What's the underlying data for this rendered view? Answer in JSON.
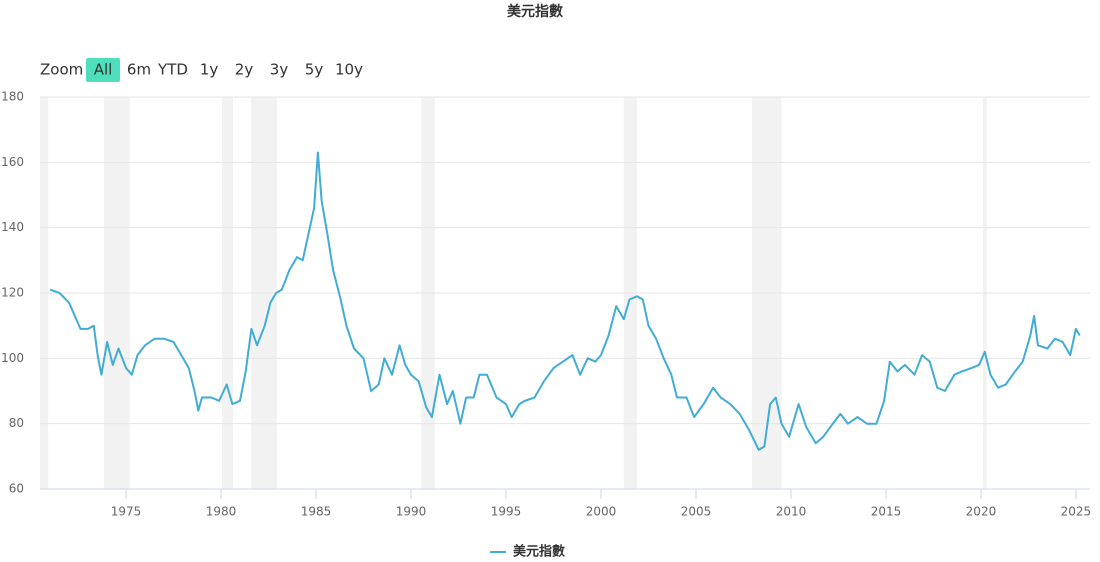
{
  "chart_data": {
    "type": "line",
    "title": "美元指數",
    "zoom_label": "Zoom",
    "range_buttons": [
      "All",
      "6m",
      "YTD",
      "1y",
      "2y",
      "3y",
      "5y",
      "10y"
    ],
    "selected_range": 0,
    "x": [
      1971.0,
      1971.5,
      1972.0,
      1972.3,
      1972.6,
      1973.0,
      1973.3,
      1973.5,
      1973.7,
      1974.0,
      1974.3,
      1974.6,
      1975.0,
      1975.3,
      1975.6,
      1976.0,
      1976.5,
      1977.0,
      1977.5,
      1978.0,
      1978.3,
      1978.6,
      1978.8,
      1979.0,
      1979.5,
      1979.9,
      1980.3,
      1980.6,
      1981.0,
      1981.3,
      1981.6,
      1981.9,
      1982.3,
      1982.6,
      1982.9,
      1983.2,
      1983.6,
      1984.0,
      1984.3,
      1984.6,
      1984.9,
      1985.1,
      1985.3,
      1985.6,
      1985.9,
      1986.3,
      1986.6,
      1987.0,
      1987.5,
      1987.9,
      1988.3,
      1988.6,
      1989.0,
      1989.4,
      1989.7,
      1990.0,
      1990.4,
      1990.8,
      1991.1,
      1991.5,
      1991.9,
      1992.2,
      1992.6,
      1992.9,
      1993.3,
      1993.6,
      1994.0,
      1994.5,
      1995.0,
      1995.3,
      1995.7,
      1996.0,
      1996.5,
      1997.0,
      1997.5,
      1998.0,
      1998.5,
      1998.9,
      1999.3,
      1999.7,
      2000.0,
      2000.4,
      2000.8,
      2001.2,
      2001.5,
      2001.9,
      2002.2,
      2002.5,
      2002.9,
      2003.3,
      2003.7,
      2004.0,
      2004.5,
      2004.9,
      2005.4,
      2005.9,
      2006.3,
      2006.8,
      2007.3,
      2007.8,
      2008.3,
      2008.6,
      2008.9,
      2009.2,
      2009.5,
      2009.9,
      2010.4,
      2010.8,
      2011.3,
      2011.7,
      2012.2,
      2012.6,
      2013.0,
      2013.5,
      2014.0,
      2014.5,
      2014.9,
      2015.2,
      2015.6,
      2016.0,
      2016.5,
      2016.9,
      2017.3,
      2017.7,
      2018.1,
      2018.6,
      2019.0,
      2019.5,
      2019.9,
      2020.2,
      2020.5,
      2020.9,
      2021.3,
      2021.8,
      2022.2,
      2022.6,
      2022.8,
      2023.0,
      2023.5,
      2023.9,
      2024.3,
      2024.7,
      2025.0,
      2025.2
    ],
    "series": [
      {
        "name": "美元指數",
        "color": "#41acd6",
        "values": [
          121,
          120,
          117,
          113,
          109,
          109,
          110,
          101,
          95,
          105,
          98,
          103,
          97,
          95,
          101,
          104,
          106,
          106,
          105,
          100,
          97,
          90,
          84,
          88,
          88,
          87,
          92,
          86,
          87,
          96,
          109,
          104,
          110,
          117,
          120,
          121,
          127,
          131,
          130,
          138,
          146,
          163,
          148,
          138,
          127,
          118,
          110,
          103,
          100,
          90,
          92,
          100,
          95,
          104,
          98,
          95,
          93,
          85,
          82,
          95,
          86,
          90,
          80,
          88,
          88,
          95,
          95,
          88,
          86,
          82,
          86,
          87,
          88,
          93,
          97,
          99,
          101,
          95,
          100,
          99,
          101,
          107,
          116,
          112,
          118,
          119,
          118,
          110,
          106,
          100,
          95,
          88,
          88,
          82,
          86,
          91,
          88,
          86,
          83,
          78,
          72,
          73,
          86,
          88,
          80,
          76,
          86,
          79,
          74,
          76,
          80,
          83,
          80,
          82,
          80,
          80,
          87,
          99,
          96,
          98,
          95,
          101,
          99,
          91,
          90,
          95,
          96,
          97,
          98,
          102,
          95,
          91,
          92,
          96,
          99,
          107,
          113,
          104,
          103,
          106,
          105,
          101,
          109,
          107
        ]
      }
    ],
    "plot_bands": [
      {
        "from": 1970.47,
        "to": 1970.9
      },
      {
        "from": 1973.84,
        "to": 1975.2
      },
      {
        "from": 1980.05,
        "to": 1980.63
      },
      {
        "from": 1981.58,
        "to": 1982.95
      },
      {
        "from": 1990.55,
        "to": 1991.25
      },
      {
        "from": 2001.2,
        "to": 2001.9
      },
      {
        "from": 2007.95,
        "to": 2009.5
      },
      {
        "from": 2020.1,
        "to": 2020.3
      }
    ],
    "xlim": [
      1970.47,
      2025.74
    ],
    "xticks": [
      1975,
      1980,
      1985,
      1990,
      1995,
      2000,
      2005,
      2010,
      2015,
      2020,
      2025
    ],
    "ylim": [
      60,
      180
    ],
    "yticks": [
      60,
      80,
      100,
      120,
      140,
      160,
      180
    ],
    "grid": true,
    "legend": "bottom"
  }
}
